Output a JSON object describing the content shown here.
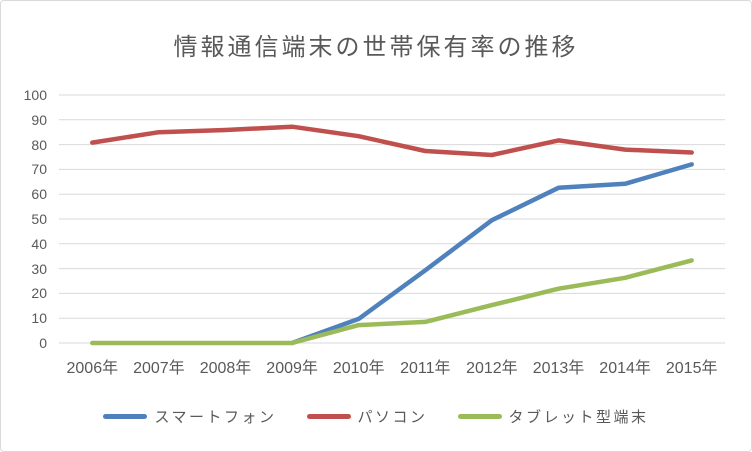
{
  "title": "情報通信端末の世帯保有率の推移",
  "chart_data": {
    "type": "line",
    "title": "情報通信端末の世帯保有率の推移",
    "xlabel": "",
    "ylabel": "",
    "categories": [
      "2006年",
      "2007年",
      "2008年",
      "2009年",
      "2010年",
      "2011年",
      "2012年",
      "2013年",
      "2014年",
      "2015年"
    ],
    "series": [
      {
        "slug": "smartphone",
        "name": "スマートフォン",
        "color": "#4F81BD",
        "values": [
          null,
          null,
          null,
          0,
          9.7,
          29.3,
          49.5,
          62.6,
          64.2,
          72.0
        ]
      },
      {
        "slug": "pc",
        "name": "パソコン",
        "color": "#C0504D",
        "values": [
          80.8,
          85.0,
          85.9,
          87.2,
          83.4,
          77.4,
          75.8,
          81.7,
          78.0,
          76.8
        ]
      },
      {
        "slug": "tablet",
        "name": "タブレット型端末",
        "color": "#9BBB59",
        "values": [
          0,
          0,
          0,
          0,
          7.2,
          8.5,
          15.3,
          21.9,
          26.3,
          33.3
        ]
      }
    ],
    "ylim": [
      0,
      100
    ],
    "yticks": [
      0,
      10,
      20,
      30,
      40,
      50,
      60,
      70,
      80,
      90,
      100
    ],
    "grid": "horizontal",
    "legend_position": "bottom",
    "colors": {
      "text": "#595959",
      "gridline": "#D9D9D9",
      "border": "#D9D9D9",
      "background": "#FFFFFF"
    }
  }
}
